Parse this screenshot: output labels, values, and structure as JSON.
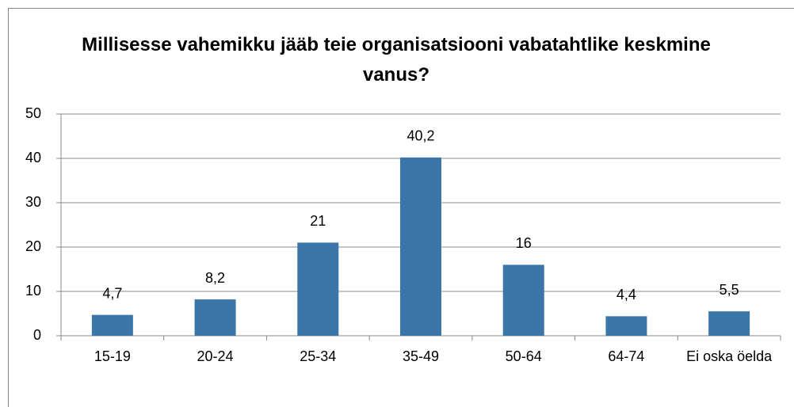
{
  "chart_data": {
    "type": "bar",
    "title": "Millisesse vahemikku jääb teie organisatsiooni vabatahtlike keskmine vanus?",
    "categories": [
      "15-19",
      "20-24",
      "25-34",
      "35-49",
      "50-64",
      "64-74",
      "Ei oska öelda"
    ],
    "values": [
      4.7,
      8.2,
      21,
      40.2,
      16,
      4.4,
      5.5
    ],
    "value_labels": [
      "4,7",
      "8,2",
      "21",
      "40,2",
      "16",
      "4,4",
      "5,5"
    ],
    "color": "#3a76a8",
    "ylim": [
      0,
      50
    ],
    "yticks": [
      0,
      10,
      20,
      30,
      40,
      50
    ],
    "grid": true
  }
}
